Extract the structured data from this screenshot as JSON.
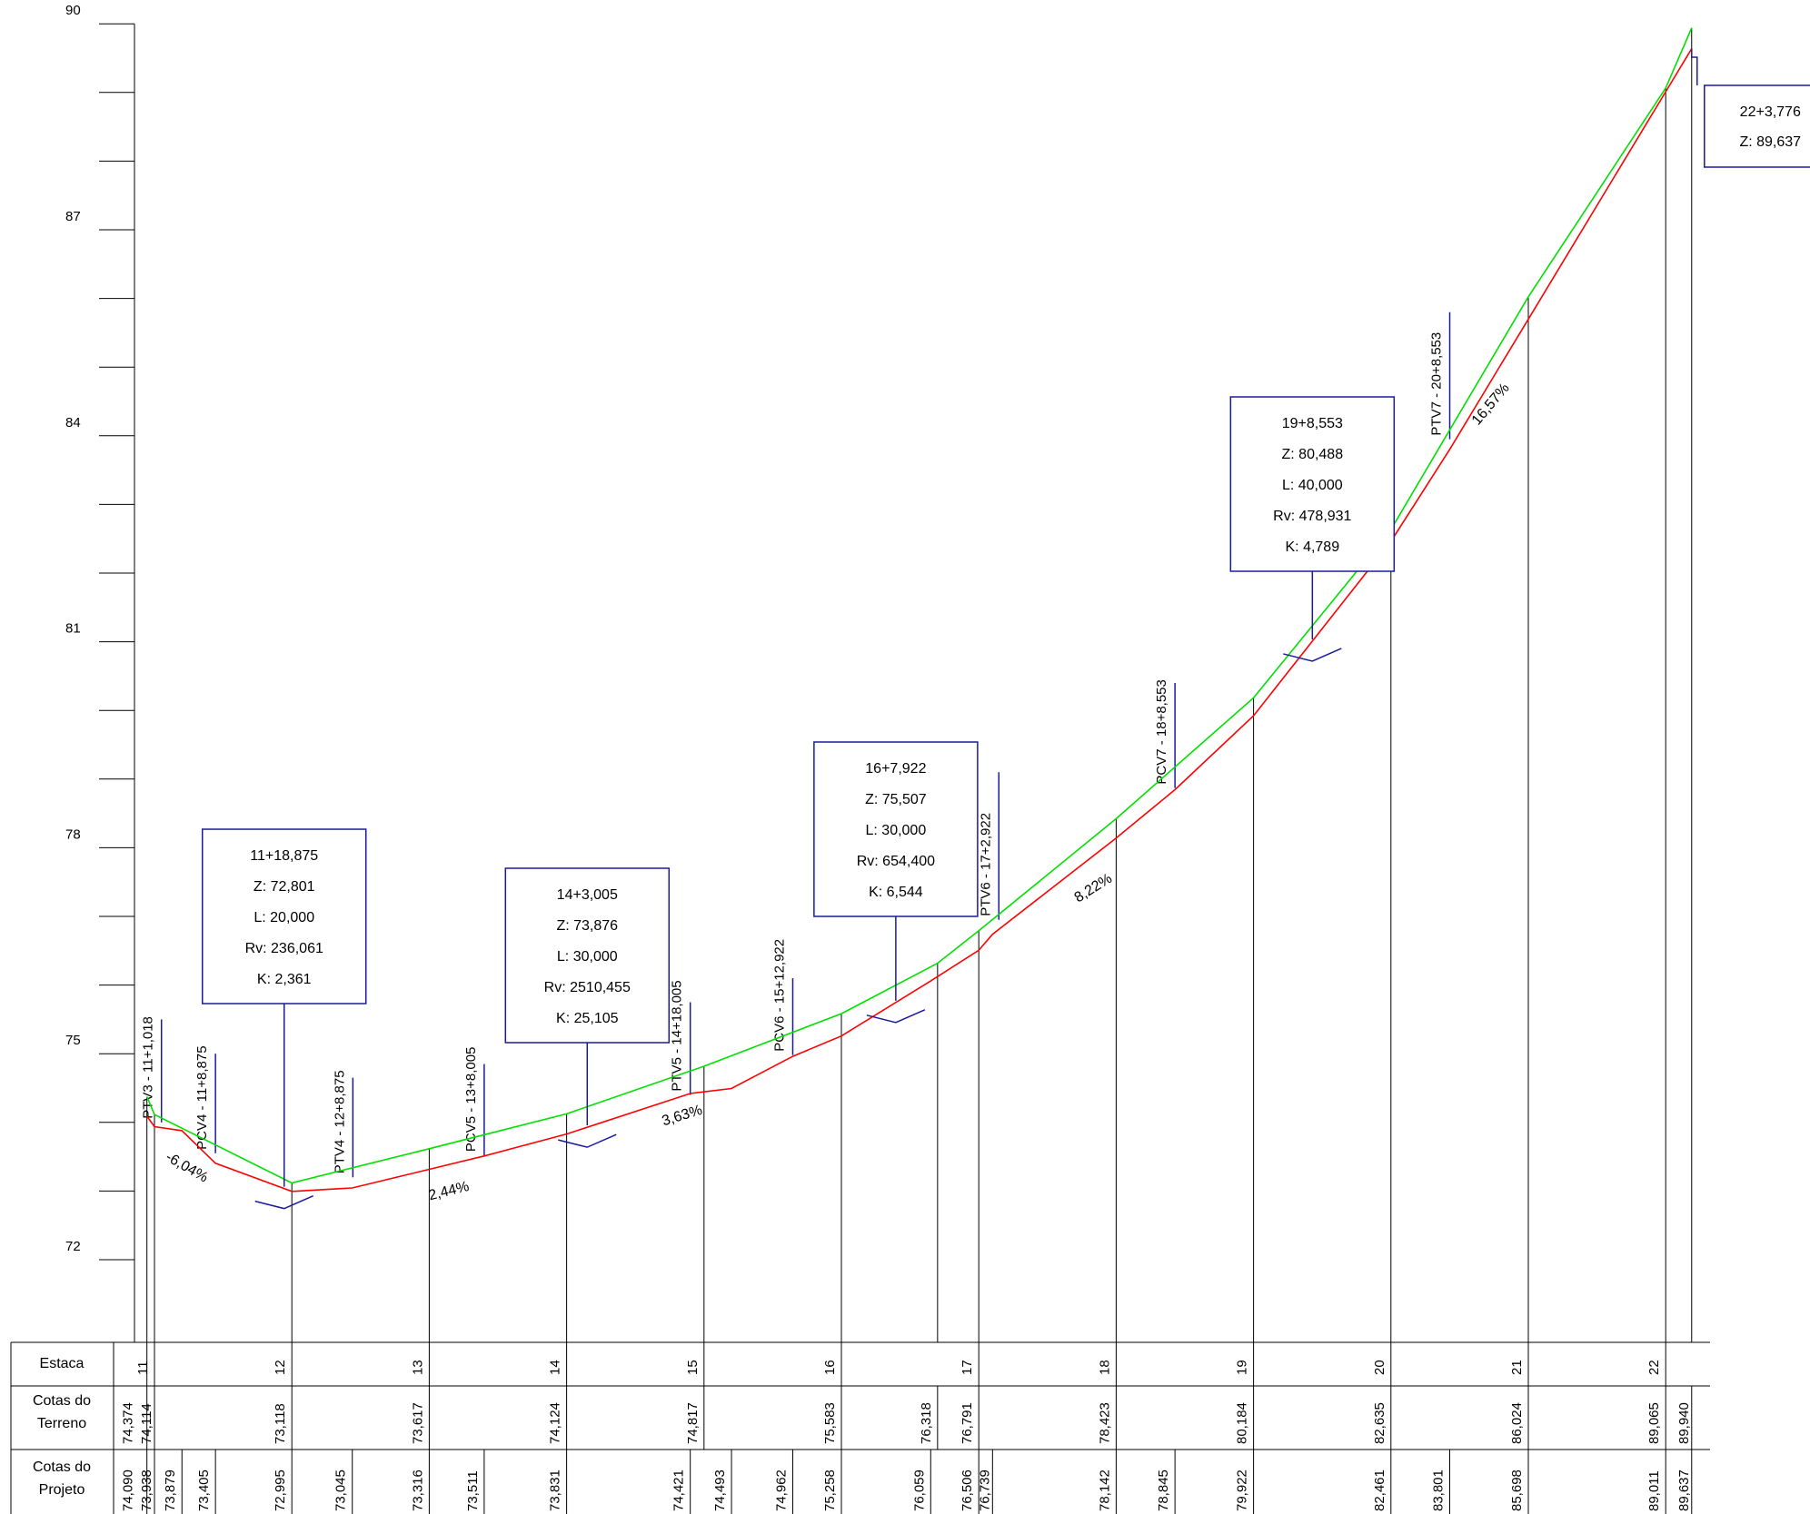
{
  "y_axis": {
    "min": 72,
    "max": 90,
    "labels": [
      "90",
      "87",
      "84",
      "81",
      "78",
      "75",
      "72"
    ]
  },
  "table_headers": {
    "estaca": "Estaca",
    "terreno": [
      "Cotas do",
      "Terreno"
    ],
    "projeto": [
      "Cotas do",
      "Projeto"
    ]
  },
  "stations": [
    "11",
    "12",
    "13",
    "14",
    "15",
    "16",
    "17",
    "18",
    "19",
    "20",
    "21",
    "22"
  ],
  "terrain_points": [
    {
      "st": 10.945,
      "z": 74.374,
      "label": "74,374"
    },
    {
      "st": 11.0,
      "z": 74.114,
      "label": "74,114"
    },
    {
      "st": 12.0,
      "z": 73.118,
      "label": "73,118"
    },
    {
      "st": 13.0,
      "z": 73.617,
      "label": "73,617"
    },
    {
      "st": 14.0,
      "z": 74.124,
      "label": "74,124"
    },
    {
      "st": 15.0,
      "z": 74.817,
      "label": "74,817"
    },
    {
      "st": 16.0,
      "z": 75.583,
      "label": "75,583"
    },
    {
      "st": 16.7,
      "z": 76.318,
      "label": "76,318"
    },
    {
      "st": 17.0,
      "z": 76.791,
      "label": "76,791"
    },
    {
      "st": 18.0,
      "z": 78.423,
      "label": "78,423"
    },
    {
      "st": 19.0,
      "z": 80.184,
      "label": "80,184"
    },
    {
      "st": 20.0,
      "z": 82.635,
      "label": "82,635"
    },
    {
      "st": 21.0,
      "z": 86.024,
      "label": "86,024"
    },
    {
      "st": 22.0,
      "z": 89.065,
      "label": "89,065"
    },
    {
      "st": 22.189,
      "z": 89.94,
      "label": "89,940"
    }
  ],
  "project_points": [
    {
      "st": 10.945,
      "z": 74.09,
      "label": "74,090"
    },
    {
      "st": 11.0,
      "z": 73.938,
      "label": "73,938"
    },
    {
      "st": 11.2,
      "z": 73.879,
      "label": "73,879"
    },
    {
      "st": 11.444,
      "z": 73.405,
      "label": "73,405"
    },
    {
      "st": 12.0,
      "z": 72.995,
      "label": "72,995"
    },
    {
      "st": 12.44,
      "z": 73.045,
      "label": "73,045"
    },
    {
      "st": 13.0,
      "z": 73.316,
      "label": "73,316"
    },
    {
      "st": 13.4,
      "z": 73.511,
      "label": "73,511"
    },
    {
      "st": 14.0,
      "z": 73.831,
      "label": "73,831"
    },
    {
      "st": 14.9,
      "z": 74.421,
      "label": "74,421"
    },
    {
      "st": 15.2,
      "z": 74.493,
      "label": "74,493"
    },
    {
      "st": 15.646,
      "z": 74.962,
      "label": "74,962"
    },
    {
      "st": 16.0,
      "z": 75.258,
      "label": "75,258"
    },
    {
      "st": 16.65,
      "z": 76.059,
      "label": "76,059"
    },
    {
      "st": 17.0,
      "z": 76.506,
      "label": "76,506"
    },
    {
      "st": 17.1,
      "z": 76.739,
      "label": "76,739"
    },
    {
      "st": 18.0,
      "z": 78.142,
      "label": "78,142"
    },
    {
      "st": 18.428,
      "z": 78.845,
      "label": "78,845"
    },
    {
      "st": 19.0,
      "z": 79.922,
      "label": "79,922"
    },
    {
      "st": 20.0,
      "z": 82.461,
      "label": "82,461"
    },
    {
      "st": 20.428,
      "z": 83.801,
      "label": "83,801"
    },
    {
      "st": 21.0,
      "z": 85.698,
      "label": "85,698"
    },
    {
      "st": 22.0,
      "z": 89.011,
      "label": "89,011"
    },
    {
      "st": 22.189,
      "z": 89.637,
      "label": "89,637"
    }
  ],
  "curve_marks": [
    {
      "st": 11.051,
      "z": 74.0,
      "top_z": 75.5,
      "text": "PTV3 - 11+1,018"
    },
    {
      "st": 11.444,
      "z": 73.55,
      "top_z": 75.0,
      "text": "PCV4 - 11+8,875"
    },
    {
      "st": 12.444,
      "z": 73.2,
      "top_z": 74.65,
      "text": "PTV4 - 12+8,875"
    },
    {
      "st": 13.4,
      "z": 73.52,
      "top_z": 74.85,
      "text": "PCV5 - 13+8,005"
    },
    {
      "st": 14.9,
      "z": 74.4,
      "top_z": 75.75,
      "text": "PTV5 - 14+18,005"
    },
    {
      "st": 15.646,
      "z": 74.98,
      "top_z": 76.1,
      "text": "PCV6 - 15+12,922"
    },
    {
      "st": 17.146,
      "z": 76.95,
      "top_z": 79.1,
      "text": "PTV6 - 17+2,922"
    },
    {
      "st": 18.428,
      "z": 78.87,
      "top_z": 80.4,
      "text": "PCV7 - 18+8,553"
    },
    {
      "st": 20.428,
      "z": 83.95,
      "top_z": 85.8,
      "text": "PTV7 - 20+8,553"
    }
  ],
  "pvi_boxes": [
    {
      "st": 11.944,
      "lines": [
        "11+18,875",
        "Z: 72,801",
        "L: 20,000",
        "Rv: 236,061",
        "K: 2,361"
      ]
    },
    {
      "st": 14.15,
      "lines": [
        "14+3,005",
        "Z: 73,876",
        "L: 30,000",
        "Rv: 2510,455",
        "K: 25,105"
      ]
    },
    {
      "st": 16.396,
      "lines": [
        "16+7,922",
        "Z: 75,507",
        "L: 30,000",
        "Rv: 654,400",
        "K: 6,544"
      ]
    },
    {
      "st": 19.428,
      "lines": [
        "19+8,553",
        "Z: 80,488",
        "L: 40,000",
        "Rv: 478,931",
        "K: 4,789"
      ]
    },
    {
      "st": 22.189,
      "lines": [
        "22+3,776",
        "Z: 89,637"
      ]
    }
  ],
  "slopes": [
    {
      "text": "-6,04%"
    },
    {
      "text": "2,44%"
    },
    {
      "text": "3,63%"
    },
    {
      "text": "8,22%"
    },
    {
      "text": "16,57%"
    }
  ],
  "colors": {
    "terrain": "#ff0000",
    "project": "#00e000",
    "annotation": "#1a1aa0",
    "structure": "#000000"
  }
}
